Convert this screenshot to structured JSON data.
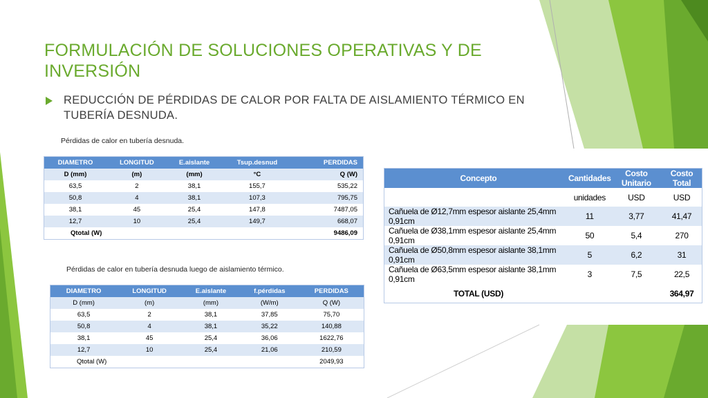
{
  "slide": {
    "title": "FORMULACIÓN DE SOLUCIONES OPERATIVAS Y DE INVERSIÓN",
    "bullet": "REDUCCIÓN DE PÉRDIDAS DE CALOR POR FALTA DE AISLAMIENTO TÉRMICO EN TUBERÍA DESNUDA.",
    "accent": "#6aaa2e"
  },
  "table1": {
    "caption": "Pérdidas de calor en tubería desnuda.",
    "headers": [
      "DIAMETRO",
      "LONGITUD",
      "E.aislante",
      "Tsup.desnud",
      "PERDIDAS"
    ],
    "units": [
      "D (mm)",
      "(m)",
      "(mm)",
      "°C",
      "Q (W)"
    ],
    "rows": [
      [
        "63,5",
        "2",
        "38,1",
        "155,7",
        "535,22"
      ],
      [
        "50,8",
        "4",
        "38,1",
        "107,3",
        "795,75"
      ],
      [
        "38,1",
        "45",
        "25,4",
        "147,8",
        "7487,05"
      ],
      [
        "12,7",
        "10",
        "25,4",
        "149,7",
        "668,07"
      ]
    ],
    "total_label": "Qtotal (W)",
    "total_value": "9486,09"
  },
  "table2": {
    "caption": "Pérdidas de calor en tubería desnuda luego de aislamiento térmico.",
    "headers": [
      "DIAMETRO",
      "LONGITUD",
      "E.aislante",
      "f.pérdidas",
      "PERDIDAS"
    ],
    "units": [
      "D (mm)",
      "(m)",
      "(mm)",
      "(W/m)",
      "Q (W)"
    ],
    "rows": [
      [
        "63,5",
        "2",
        "38,1",
        "37,85",
        "75,70"
      ],
      [
        "50,8",
        "4",
        "38,1",
        "35,22",
        "140,88"
      ],
      [
        "38,1",
        "45",
        "25,4",
        "36,06",
        "1622,76"
      ],
      [
        "12,7",
        "10",
        "25,4",
        "21,06",
        "210,59"
      ]
    ],
    "total_label": "Qtotal (W)",
    "total_value": "2049,93"
  },
  "table3": {
    "headers": [
      "Concepto",
      "Cantidades",
      "Costo Unitario",
      "Costo Total"
    ],
    "units": [
      "",
      "unidades",
      "USD",
      "USD"
    ],
    "rows": [
      [
        "Cañuela de Ø12,7mm espesor aislante 25,4mm 0,91cm",
        "11",
        "3,77",
        "41,47"
      ],
      [
        "Cañuela de Ø38,1mm espesor aislante 25,4mm 0,91cm",
        "50",
        "5,4",
        "270"
      ],
      [
        "Cañuela de Ø50,8mm espesor aislante 38,1mm 0,91cm",
        "5",
        "6,2",
        "31"
      ],
      [
        "Cañuela de Ø63,5mm espesor aislante 38,1mm 0,91cm",
        "3",
        "7,5",
        "22,5"
      ]
    ],
    "total_label": "TOTAL (USD)",
    "total_value": "364,97"
  }
}
